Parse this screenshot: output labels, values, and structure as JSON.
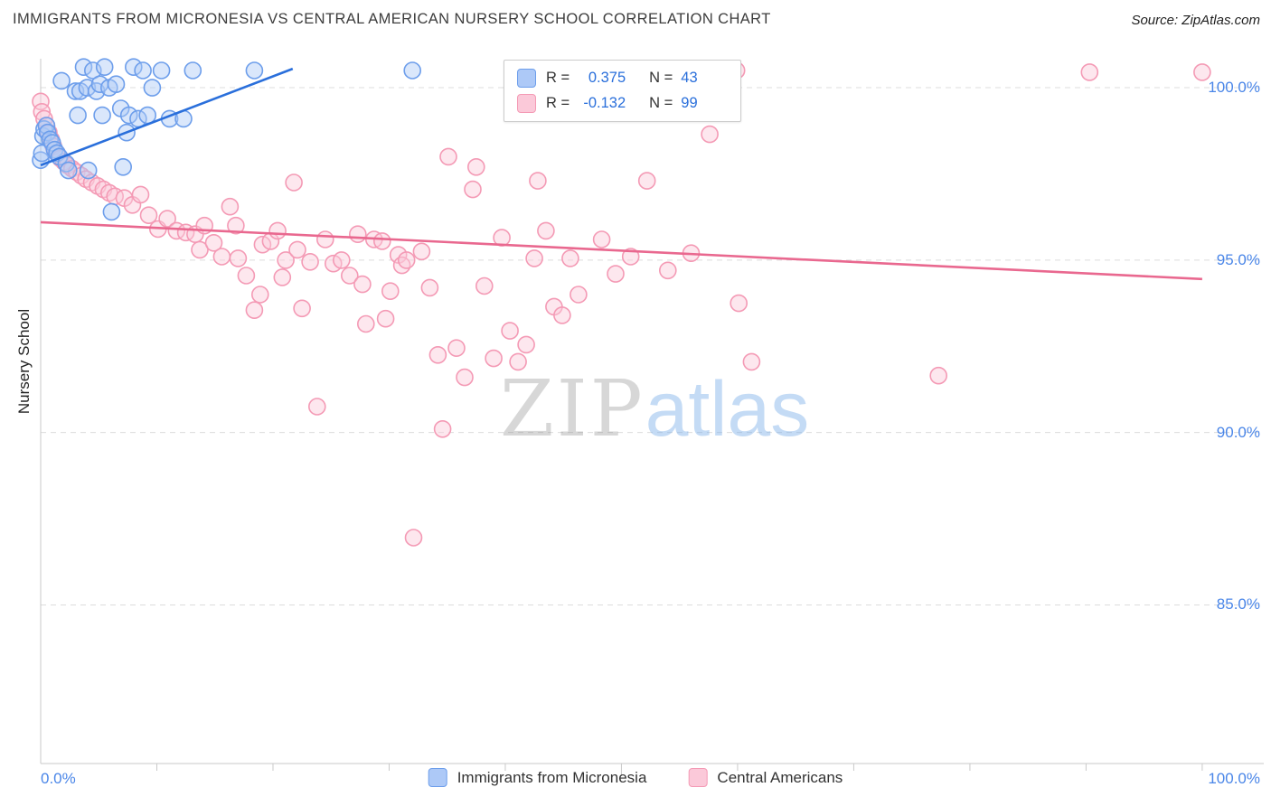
{
  "header": {
    "source": "Source: ZipAtlas.com"
  },
  "watermark": {
    "zip": "ZIP",
    "atlas": "atlas"
  },
  "legend": {
    "r_prefix": "R =",
    "n_prefix": "N ="
  },
  "colors": {
    "tick_label_blue": "#4a86e8",
    "legend_value_blue": "#2a6fdb",
    "grid_gray": "#dcdcdc",
    "axis_gray": "#c9c9c9"
  },
  "chart_data": {
    "type": "scatter",
    "title": "IMMIGRANTS FROM MICRONESIA VS CENTRAL AMERICAN NURSERY SCHOOL CORRELATION CHART",
    "xlabel": "",
    "ylabel": "Nursery School",
    "xlim": [
      0,
      105.3
    ],
    "ylim": [
      80.4,
      100.84
    ],
    "grid": "horizontal-dashed",
    "legend_position": "top-center",
    "x_ticks": [
      {
        "value": 0,
        "label": "0.0%",
        "align": "left"
      },
      {
        "value": 100,
        "label": "100.0%",
        "align": "right"
      }
    ],
    "x_minor_tick_values": [
      10,
      20,
      30,
      40,
      50,
      60,
      70,
      80,
      90,
      100
    ],
    "y_ticks": [
      {
        "value": 100,
        "label": "100.0%"
      },
      {
        "value": 95,
        "label": "95.0%"
      },
      {
        "value": 90,
        "label": "90.0%"
      },
      {
        "value": 85,
        "label": "85.0%"
      }
    ],
    "series": [
      {
        "name": "Immigrants from Micronesia",
        "short": "micronesia",
        "R": 0.375,
        "N": 43,
        "color": "#6d9eeb",
        "fill": "#adc9f7",
        "trend_color": "#2a6fdb",
        "trend": {
          "x1": 0,
          "y1": 97.75,
          "x2": 21.7,
          "y2": 100.55
        },
        "points": [
          [
            0.0,
            97.9
          ],
          [
            0.1,
            98.1
          ],
          [
            0.2,
            98.6
          ],
          [
            0.3,
            98.8
          ],
          [
            0.5,
            98.9
          ],
          [
            0.6,
            98.7
          ],
          [
            0.8,
            98.5
          ],
          [
            1.0,
            98.4
          ],
          [
            1.2,
            98.2
          ],
          [
            1.4,
            98.1
          ],
          [
            1.6,
            98.0
          ],
          [
            1.8,
            100.2
          ],
          [
            2.2,
            97.8
          ],
          [
            2.4,
            97.6
          ],
          [
            3.0,
            99.9
          ],
          [
            3.2,
            99.2
          ],
          [
            3.4,
            99.9
          ],
          [
            3.7,
            100.6
          ],
          [
            4.0,
            100.0
          ],
          [
            4.1,
            97.6
          ],
          [
            4.5,
            100.5
          ],
          [
            4.8,
            99.9
          ],
          [
            5.1,
            100.1
          ],
          [
            5.3,
            99.2
          ],
          [
            5.5,
            100.6
          ],
          [
            5.9,
            100.0
          ],
          [
            6.1,
            96.4
          ],
          [
            6.5,
            100.1
          ],
          [
            6.9,
            99.4
          ],
          [
            7.1,
            97.7
          ],
          [
            7.4,
            98.7
          ],
          [
            7.6,
            99.2
          ],
          [
            8.0,
            100.6
          ],
          [
            8.4,
            99.1
          ],
          [
            8.8,
            100.5
          ],
          [
            9.2,
            99.2
          ],
          [
            9.6,
            100.0
          ],
          [
            10.4,
            100.5
          ],
          [
            11.1,
            99.1
          ],
          [
            12.3,
            99.1
          ],
          [
            13.1,
            100.5
          ],
          [
            18.4,
            100.5
          ],
          [
            32.0,
            100.5
          ]
        ]
      },
      {
        "name": "Central Americans",
        "short": "central-americans",
        "R": -0.132,
        "N": 99,
        "color": "#f49ab5",
        "fill": "#fbc9d9",
        "trend_color": "#e9688f",
        "trend": {
          "x1": 0,
          "y1": 96.1,
          "x2": 100,
          "y2": 94.45
        },
        "points": [
          [
            0.0,
            99.6
          ],
          [
            0.1,
            99.3
          ],
          [
            0.3,
            99.1
          ],
          [
            0.5,
            98.9
          ],
          [
            0.7,
            98.7
          ],
          [
            0.9,
            98.5
          ],
          [
            1.1,
            98.3
          ],
          [
            1.4,
            98.1
          ],
          [
            1.7,
            97.95
          ],
          [
            2.0,
            97.85
          ],
          [
            2.3,
            97.75
          ],
          [
            2.7,
            97.65
          ],
          [
            3.1,
            97.55
          ],
          [
            3.5,
            97.45
          ],
          [
            3.9,
            97.35
          ],
          [
            4.4,
            97.25
          ],
          [
            4.9,
            97.15
          ],
          [
            5.4,
            97.05
          ],
          [
            5.9,
            96.95
          ],
          [
            6.4,
            96.85
          ],
          [
            7.2,
            96.8
          ],
          [
            7.9,
            96.6
          ],
          [
            8.6,
            96.9
          ],
          [
            9.3,
            96.3
          ],
          [
            10.1,
            95.9
          ],
          [
            10.9,
            96.2
          ],
          [
            11.7,
            95.85
          ],
          [
            12.5,
            95.8
          ],
          [
            13.3,
            95.75
          ],
          [
            13.7,
            95.3
          ],
          [
            14.1,
            96.0
          ],
          [
            14.9,
            95.5
          ],
          [
            15.6,
            95.1
          ],
          [
            16.3,
            96.55
          ],
          [
            16.8,
            96.0
          ],
          [
            17.0,
            95.05
          ],
          [
            17.7,
            94.55
          ],
          [
            18.4,
            93.55
          ],
          [
            18.9,
            94.0
          ],
          [
            19.1,
            95.45
          ],
          [
            19.8,
            95.55
          ],
          [
            20.4,
            95.85
          ],
          [
            20.8,
            94.5
          ],
          [
            21.1,
            95.0
          ],
          [
            21.8,
            97.25
          ],
          [
            22.1,
            95.3
          ],
          [
            22.5,
            93.6
          ],
          [
            23.2,
            94.95
          ],
          [
            23.8,
            90.75
          ],
          [
            24.5,
            95.6
          ],
          [
            25.2,
            94.9
          ],
          [
            25.9,
            95.0
          ],
          [
            26.6,
            94.55
          ],
          [
            27.3,
            95.75
          ],
          [
            27.7,
            94.3
          ],
          [
            28.0,
            93.15
          ],
          [
            28.7,
            95.6
          ],
          [
            29.4,
            95.55
          ],
          [
            29.7,
            93.3
          ],
          [
            30.1,
            94.1
          ],
          [
            30.8,
            95.15
          ],
          [
            31.1,
            94.85
          ],
          [
            31.5,
            95.0
          ],
          [
            32.1,
            86.95
          ],
          [
            32.8,
            95.25
          ],
          [
            33.5,
            94.2
          ],
          [
            34.2,
            92.25
          ],
          [
            34.6,
            90.1
          ],
          [
            35.1,
            98.0
          ],
          [
            35.8,
            92.45
          ],
          [
            36.5,
            91.6
          ],
          [
            37.2,
            97.05
          ],
          [
            37.5,
            97.7
          ],
          [
            38.2,
            94.25
          ],
          [
            39.0,
            92.15
          ],
          [
            39.7,
            95.65
          ],
          [
            40.4,
            92.95
          ],
          [
            41.1,
            92.05
          ],
          [
            41.8,
            92.55
          ],
          [
            42.5,
            95.05
          ],
          [
            42.8,
            97.3
          ],
          [
            43.5,
            95.85
          ],
          [
            44.2,
            93.65
          ],
          [
            44.9,
            93.4
          ],
          [
            45.6,
            95.05
          ],
          [
            46.3,
            94.0
          ],
          [
            48.3,
            95.6
          ],
          [
            49.5,
            94.6
          ],
          [
            50.8,
            95.1
          ],
          [
            52.2,
            97.3
          ],
          [
            54.0,
            94.7
          ],
          [
            56.0,
            95.2
          ],
          [
            57.6,
            98.65
          ],
          [
            59.9,
            100.5
          ],
          [
            60.1,
            93.75
          ],
          [
            61.2,
            92.05
          ],
          [
            77.3,
            91.65
          ],
          [
            90.3,
            100.45
          ],
          [
            100.0,
            100.45
          ]
        ]
      }
    ]
  }
}
